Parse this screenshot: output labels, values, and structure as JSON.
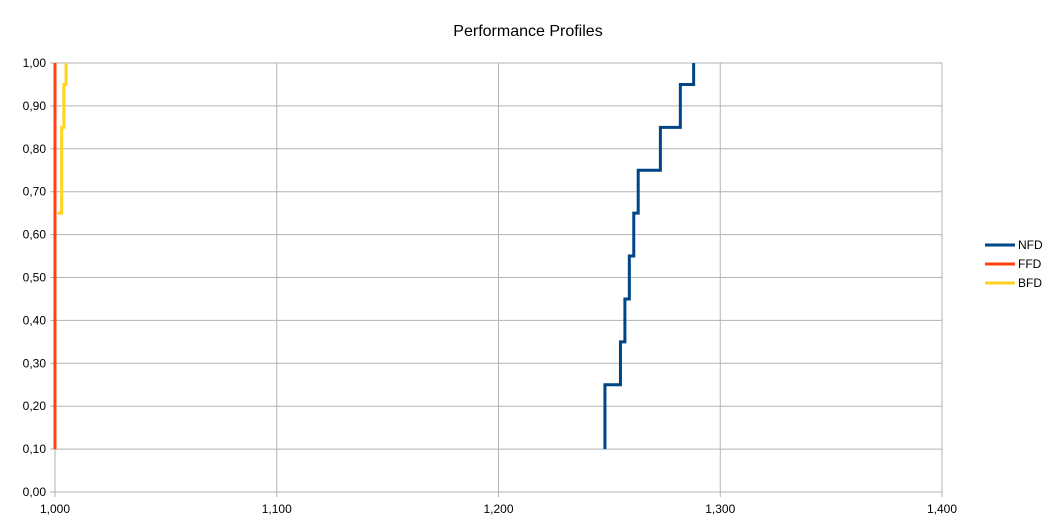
{
  "chart_data": {
    "type": "line",
    "step": true,
    "title": "Performance Profiles",
    "xlabel": "",
    "ylabel": "",
    "xlim": [
      1.0,
      1.4
    ],
    "ylim": [
      0.0,
      1.0
    ],
    "x_ticks": [
      "1,000",
      "1,100",
      "1,200",
      "1,300",
      "1,400"
    ],
    "x_tick_values": [
      1.0,
      1.1,
      1.2,
      1.3,
      1.4
    ],
    "y_ticks": [
      "0,00",
      "0,10",
      "0,20",
      "0,30",
      "0,40",
      "0,50",
      "0,60",
      "0,70",
      "0,80",
      "0,90",
      "1,00"
    ],
    "y_tick_values": [
      0.0,
      0.1,
      0.2,
      0.3,
      0.4,
      0.5,
      0.6,
      0.7,
      0.8,
      0.9,
      1.0
    ],
    "grid": true,
    "legend_position": "right",
    "series": [
      {
        "name": "NFD",
        "color": "#004586",
        "points": [
          [
            1.248,
            0.1
          ],
          [
            1.248,
            0.25
          ],
          [
            1.255,
            0.25
          ],
          [
            1.255,
            0.35
          ],
          [
            1.257,
            0.35
          ],
          [
            1.257,
            0.45
          ],
          [
            1.259,
            0.45
          ],
          [
            1.259,
            0.55
          ],
          [
            1.261,
            0.55
          ],
          [
            1.261,
            0.65
          ],
          [
            1.263,
            0.65
          ],
          [
            1.263,
            0.75
          ],
          [
            1.273,
            0.75
          ],
          [
            1.273,
            0.85
          ],
          [
            1.282,
            0.85
          ],
          [
            1.282,
            0.95
          ],
          [
            1.288,
            0.95
          ],
          [
            1.288,
            1.0
          ]
        ]
      },
      {
        "name": "FFD",
        "color": "#ff420e",
        "points": [
          [
            1.0,
            0.1
          ],
          [
            1.0,
            1.0
          ]
        ]
      },
      {
        "name": "BFD",
        "color": "#ffd320",
        "points": [
          [
            1.001,
            0.65
          ],
          [
            1.003,
            0.65
          ],
          [
            1.003,
            0.85
          ],
          [
            1.004,
            0.85
          ],
          [
            1.004,
            0.95
          ],
          [
            1.005,
            0.95
          ],
          [
            1.005,
            1.0
          ]
        ]
      }
    ]
  }
}
